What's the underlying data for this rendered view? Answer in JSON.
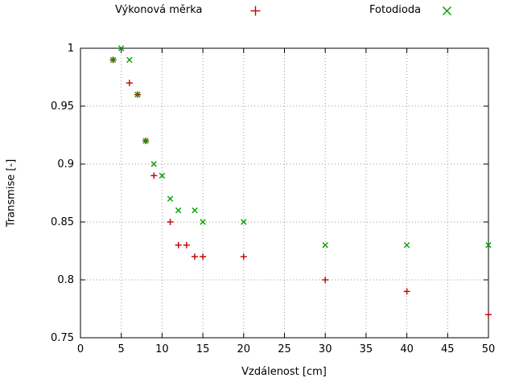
{
  "chart_data": {
    "type": "scatter",
    "title": "",
    "xlabel": "Vzdálenost [cm]",
    "ylabel": "Transmise [-]",
    "xlim": [
      0,
      50
    ],
    "ylim": [
      0.75,
      1
    ],
    "grid": true,
    "legend_position": "top-outside",
    "x_tick_values": [
      0,
      5,
      10,
      15,
      20,
      25,
      30,
      35,
      40,
      45,
      50
    ],
    "x_tick_labels": [
      "0",
      "5",
      "10",
      "15",
      "20",
      "25",
      "30",
      "35",
      "40",
      "45",
      "50"
    ],
    "y_tick_values": [
      0.75,
      0.8,
      0.85,
      0.9,
      0.95,
      1
    ],
    "y_tick_labels": [
      "0.75",
      "0.8",
      "0.85",
      "0.9",
      "0.95",
      "1"
    ],
    "series": [
      {
        "name": "Výkonová měrka",
        "marker": "plus",
        "color": "#c00000",
        "points": [
          [
            4,
            0.99
          ],
          [
            6,
            0.97
          ],
          [
            7,
            0.96
          ],
          [
            8,
            0.92
          ],
          [
            9,
            0.89
          ],
          [
            11,
            0.85
          ],
          [
            12,
            0.83
          ],
          [
            13,
            0.83
          ],
          [
            14,
            0.82
          ],
          [
            15,
            0.82
          ],
          [
            20,
            0.82
          ],
          [
            30,
            0.8
          ],
          [
            40,
            0.79
          ],
          [
            50,
            0.77
          ]
        ]
      },
      {
        "name": "Fotodioda",
        "marker": "cross",
        "color": "#00a000",
        "points": [
          [
            4,
            0.99
          ],
          [
            5,
            1.0
          ],
          [
            6,
            0.99
          ],
          [
            7,
            0.96
          ],
          [
            8,
            0.92
          ],
          [
            9,
            0.9
          ],
          [
            10,
            0.89
          ],
          [
            11,
            0.87
          ],
          [
            12,
            0.86
          ],
          [
            14,
            0.86
          ],
          [
            15,
            0.85
          ],
          [
            20,
            0.85
          ],
          [
            30,
            0.83
          ],
          [
            40,
            0.83
          ],
          [
            50,
            0.83
          ]
        ]
      }
    ]
  }
}
